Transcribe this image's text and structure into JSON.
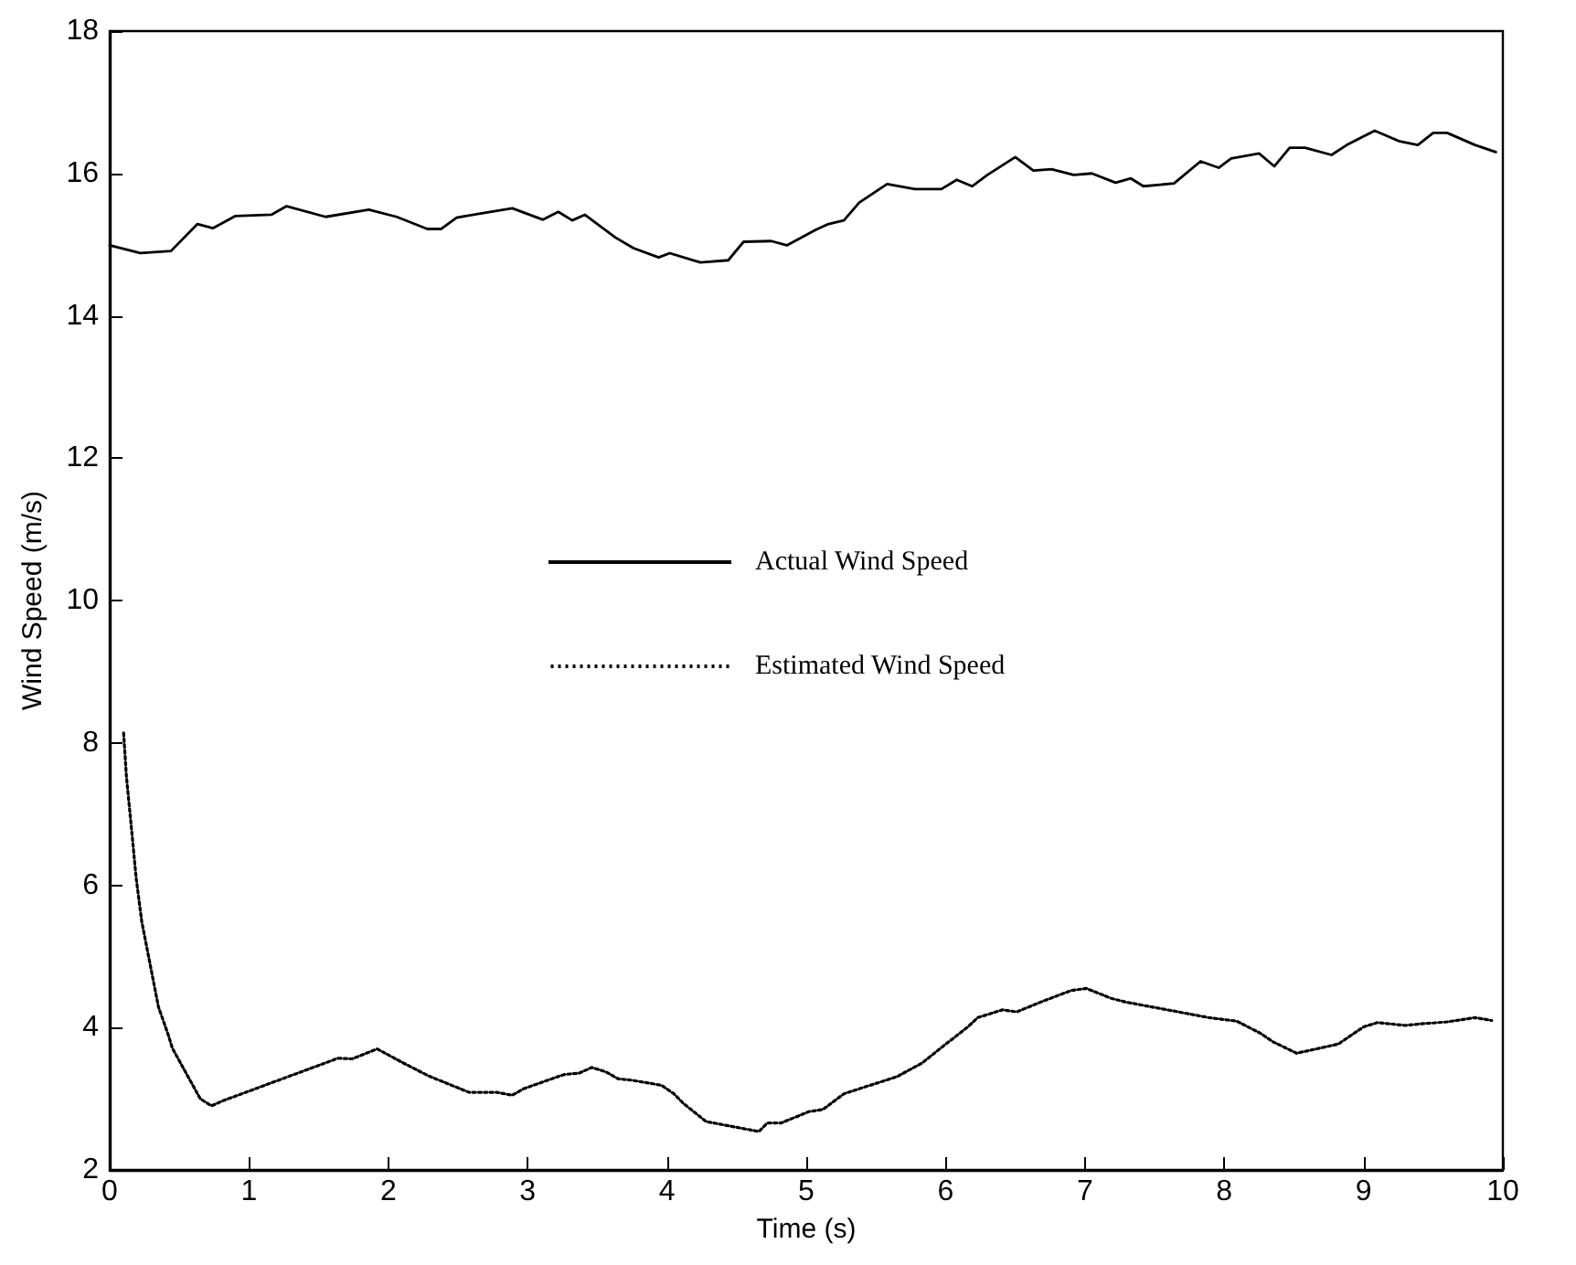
{
  "chart_data": {
    "type": "line",
    "xlabel": "Time (s)",
    "ylabel": "Wind Speed (m/s)",
    "xlim": [
      0,
      10
    ],
    "xticks": [
      0,
      1,
      2,
      3,
      4,
      5,
      6,
      7,
      8,
      9,
      10
    ],
    "ylim": [
      2,
      18
    ],
    "yticks": [
      2,
      4,
      6,
      8,
      10,
      12,
      14,
      16,
      18
    ],
    "grid": false,
    "legend": "center",
    "marker": "none",
    "series": [
      {
        "name": "Actual Wind Speed",
        "color": "#000000",
        "line_style": "solid",
        "x": [
          0,
          0.22,
          0.44,
          0.63,
          0.74,
          0.9,
          1.16,
          1.27,
          1.55,
          1.86,
          2.06,
          2.28,
          2.38,
          2.49,
          2.67,
          2.89,
          3.11,
          3.22,
          3.32,
          3.41,
          3.63,
          3.76,
          3.94,
          4.02,
          4.24,
          4.44,
          4.55,
          4.75,
          4.86,
          5.07,
          5.16,
          5.27,
          5.38,
          5.58,
          5.78,
          5.97,
          6.08,
          6.19,
          6.3,
          6.5,
          6.63,
          6.76,
          6.92,
          7.05,
          7.22,
          7.33,
          7.42,
          7.64,
          7.83,
          7.96,
          8.05,
          8.25,
          8.36,
          8.47,
          8.58,
          8.77,
          8.88,
          9.08,
          9.26,
          9.39,
          9.5,
          9.6,
          9.8,
          9.95
        ],
        "values": [
          14.99,
          14.88,
          14.91,
          15.29,
          15.23,
          15.4,
          15.42,
          15.54,
          15.39,
          15.49,
          15.39,
          15.22,
          15.22,
          15.38,
          15.44,
          15.51,
          15.35,
          15.46,
          15.34,
          15.42,
          15.1,
          14.95,
          14.82,
          14.88,
          14.75,
          14.78,
          15.04,
          15.05,
          14.99,
          15.21,
          15.29,
          15.34,
          15.59,
          15.85,
          15.78,
          15.78,
          15.91,
          15.82,
          15.98,
          16.23,
          16.04,
          16.06,
          15.98,
          16.0,
          15.87,
          15.93,
          15.82,
          15.86,
          16.17,
          16.08,
          16.21,
          16.28,
          16.1,
          16.36,
          16.36,
          16.26,
          16.4,
          16.6,
          16.45,
          16.4,
          16.57,
          16.57,
          16.4,
          16.3
        ]
      },
      {
        "name": "Estimated Wind Speed",
        "color": "#000000",
        "line_style": "dotted",
        "x": [
          0.1,
          0.12,
          0.16,
          0.19,
          0.23,
          0.35,
          0.42,
          0.45,
          0.65,
          0.73,
          0.81,
          1.64,
          1.74,
          1.92,
          2.1,
          2.29,
          2.58,
          2.78,
          2.89,
          2.97,
          3.26,
          3.37,
          3.46,
          3.56,
          3.65,
          3.75,
          3.96,
          4.05,
          4.12,
          4.28,
          4.66,
          4.72,
          4.82,
          4.92,
          5.02,
          5.12,
          5.27,
          5.65,
          5.83,
          5.99,
          6.16,
          6.23,
          6.41,
          6.51,
          6.71,
          6.9,
          7.01,
          7.19,
          7.29,
          7.48,
          7.89,
          8.09,
          8.26,
          8.35,
          8.52,
          8.73,
          8.82,
          9.0,
          9.1,
          9.3,
          9.4,
          9.6,
          9.8,
          9.92
        ],
        "values": [
          8.14,
          7.53,
          6.72,
          6.1,
          5.49,
          4.29,
          3.9,
          3.71,
          3.0,
          2.9,
          2.97,
          3.57,
          3.56,
          3.7,
          3.51,
          3.32,
          3.09,
          3.09,
          3.05,
          3.14,
          3.34,
          3.36,
          3.44,
          3.38,
          3.28,
          3.26,
          3.19,
          3.07,
          2.93,
          2.68,
          2.54,
          2.66,
          2.66,
          2.74,
          2.82,
          2.85,
          3.07,
          3.31,
          3.5,
          3.75,
          4.01,
          4.14,
          4.25,
          4.22,
          4.38,
          4.52,
          4.55,
          4.41,
          4.36,
          4.29,
          4.14,
          4.09,
          3.92,
          3.8,
          3.64,
          3.73,
          3.77,
          4.01,
          4.07,
          4.03,
          4.05,
          4.08,
          4.14,
          4.1
        ]
      }
    ]
  }
}
